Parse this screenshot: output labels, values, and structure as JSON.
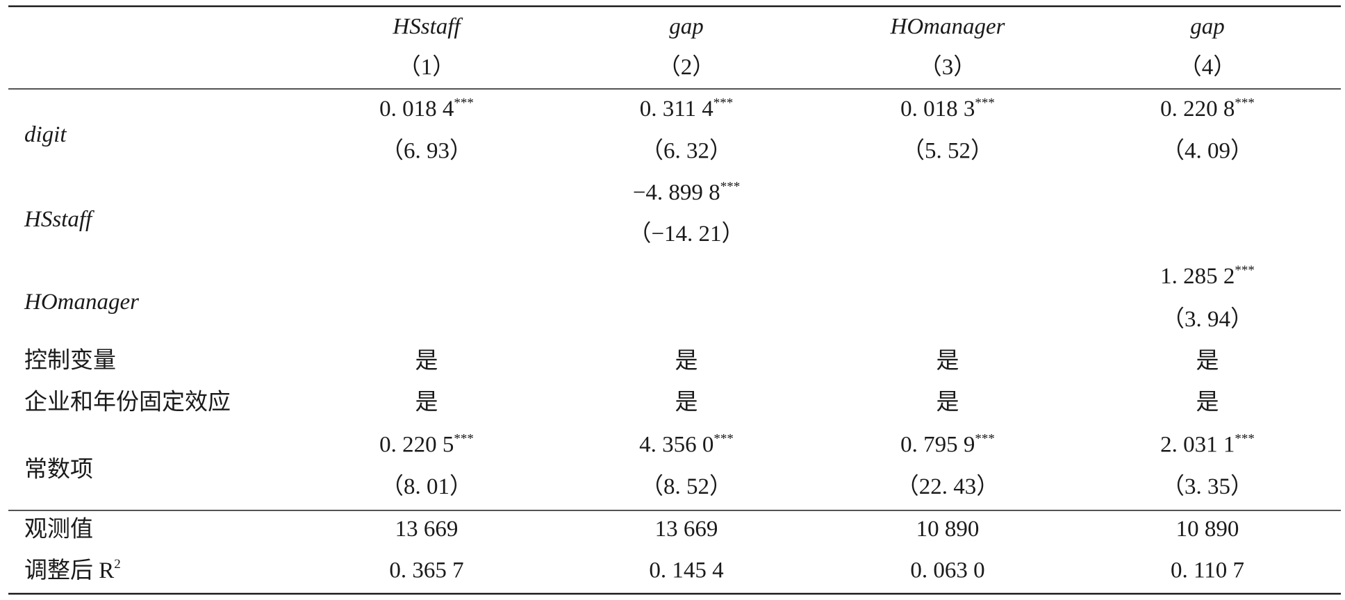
{
  "table": {
    "columns": [
      {
        "name": "HSstaff",
        "number": "（1）"
      },
      {
        "name": "gap",
        "number": "（2）"
      },
      {
        "name": "HOmanager",
        "number": "（3）"
      },
      {
        "name": "gap",
        "number": "（4）"
      }
    ],
    "rows": [
      {
        "label": "digit",
        "italic": true,
        "cells": [
          {
            "coef": "0. 018 4",
            "stars": "***",
            "t": "（6. 93）"
          },
          {
            "coef": "0. 311 4",
            "stars": "***",
            "t": "（6. 32）"
          },
          {
            "coef": "0. 018 3",
            "stars": "***",
            "t": "（5. 52）"
          },
          {
            "coef": "0. 220 8",
            "stars": "***",
            "t": "（4. 09）"
          }
        ]
      },
      {
        "label": "HSstaff",
        "italic": true,
        "cells": [
          null,
          {
            "coef": "−4. 899 8",
            "stars": "***",
            "t": "（−14. 21）"
          },
          null,
          null
        ]
      },
      {
        "label": "HOmanager",
        "italic": true,
        "cells": [
          null,
          null,
          null,
          {
            "coef": "1. 285 2",
            "stars": "***",
            "t": "（3. 94）"
          }
        ]
      },
      {
        "label": "控制变量",
        "italic": false,
        "cells": [
          {
            "coef": "是"
          },
          {
            "coef": "是"
          },
          {
            "coef": "是"
          },
          {
            "coef": "是"
          }
        ]
      },
      {
        "label": "企业和年份固定效应",
        "italic": false,
        "cells": [
          {
            "coef": "是"
          },
          {
            "coef": "是"
          },
          {
            "coef": "是"
          },
          {
            "coef": "是"
          }
        ]
      },
      {
        "label": "常数项",
        "italic": false,
        "cells": [
          {
            "coef": "0. 220 5",
            "stars": "***",
            "t": "（8. 01）"
          },
          {
            "coef": "4. 356 0",
            "stars": "***",
            "t": "（8. 52）"
          },
          {
            "coef": "0. 795 9",
            "stars": "***",
            "t": "（22. 43）"
          },
          {
            "coef": "2. 031 1",
            "stars": "***",
            "t": "（3. 35）"
          }
        ]
      }
    ],
    "footer_rows": [
      {
        "label": "观测值",
        "cells": [
          "13 669",
          "13 669",
          "10 890",
          "10 890"
        ]
      },
      {
        "label": "调整后 R",
        "label_sup": "2",
        "cells": [
          "0. 365 7",
          "0. 145 4",
          "0. 063 0",
          "0. 110 7"
        ]
      }
    ]
  }
}
